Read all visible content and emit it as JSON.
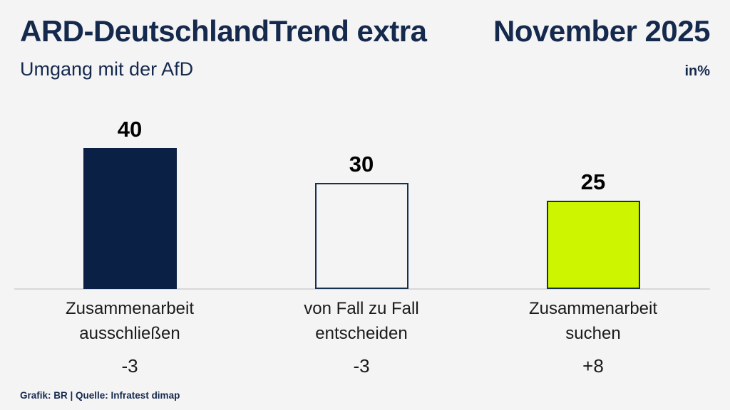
{
  "header": {
    "title": "ARD-DeutschlandTrend extra",
    "date": "November 2025",
    "subtitle": "Umgang mit der AfD",
    "unit": "in%"
  },
  "chart_data": {
    "type": "bar",
    "title": "Umgang mit der AfD",
    "unit": "in%",
    "categories": [
      "Zusammenarbeit ausschließen",
      "von Fall zu Fall entscheiden",
      "Zusammenarbeit suchen"
    ],
    "values": [
      40,
      30,
      25
    ],
    "changes": [
      "-3",
      "-3",
      "+8"
    ],
    "ylim": [
      0,
      45
    ],
    "grid": false,
    "legend": "none",
    "bars": [
      {
        "label": "Zusammenarbeit\nausschließen",
        "value": "40",
        "height_units": 40,
        "change": "-3",
        "fill": "#0a2145",
        "border": "#0a2145"
      },
      {
        "label": "von Fall zu Fall\nentscheiden",
        "value": "30",
        "height_units": 30,
        "change": "-3",
        "fill": "transparent",
        "border": "#16304f"
      },
      {
        "label": "Zusammenarbeit\nsuchen",
        "value": "25",
        "height_units": 25,
        "change": "+8",
        "fill": "#cdf500",
        "border": "#16304f"
      }
    ]
  },
  "footer": {
    "source": "Grafik: BR | Quelle: Infratest dimap"
  },
  "colors": {
    "navy": "#15294d",
    "bar_navy": "#0a2145",
    "bar_chartreuse": "#cdf500",
    "background": "#f4f4f5",
    "baseline_gray": "#d8d8d8",
    "text_black": "#1a1a1a"
  }
}
